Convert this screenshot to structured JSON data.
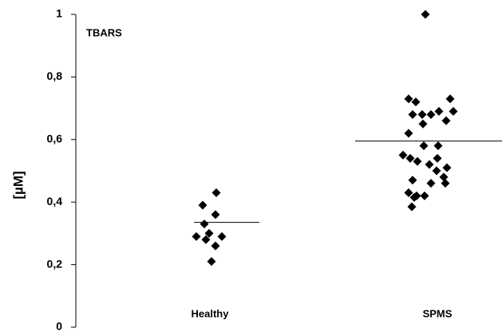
{
  "chart_data": {
    "type": "strip",
    "annotation": "TBARS",
    "ylabel": "[µM]",
    "categories": [
      "Healthy",
      "SPMS"
    ],
    "series": [
      {
        "name": "Healthy",
        "color": "#000000",
        "mean": 0.335,
        "values": [
          0.43,
          0.39,
          0.36,
          0.33,
          0.29,
          0.3,
          0.29,
          0.28,
          0.26,
          0.21
        ]
      },
      {
        "name": "SPMS",
        "color": "#000000",
        "mean": 0.595,
        "values": [
          1.0,
          0.73,
          0.72,
          0.73,
          0.68,
          0.68,
          0.69,
          0.69,
          0.68,
          0.66,
          0.65,
          0.62,
          0.58,
          0.58,
          0.55,
          0.54,
          0.53,
          0.54,
          0.52,
          0.51,
          0.5,
          0.48,
          0.47,
          0.46,
          0.46,
          0.43,
          0.42,
          0.42,
          0.415,
          0.385
        ]
      }
    ],
    "ylim": [
      0,
      1
    ],
    "yticks": [
      0,
      {
        "value": 0.2,
        "label": "0,2"
      },
      {
        "value": 0.4,
        "label": "0,4"
      },
      {
        "value": 0.6,
        "label": "0,6"
      },
      {
        "value": 0.8,
        "label": "0,8"
      },
      1
    ]
  }
}
